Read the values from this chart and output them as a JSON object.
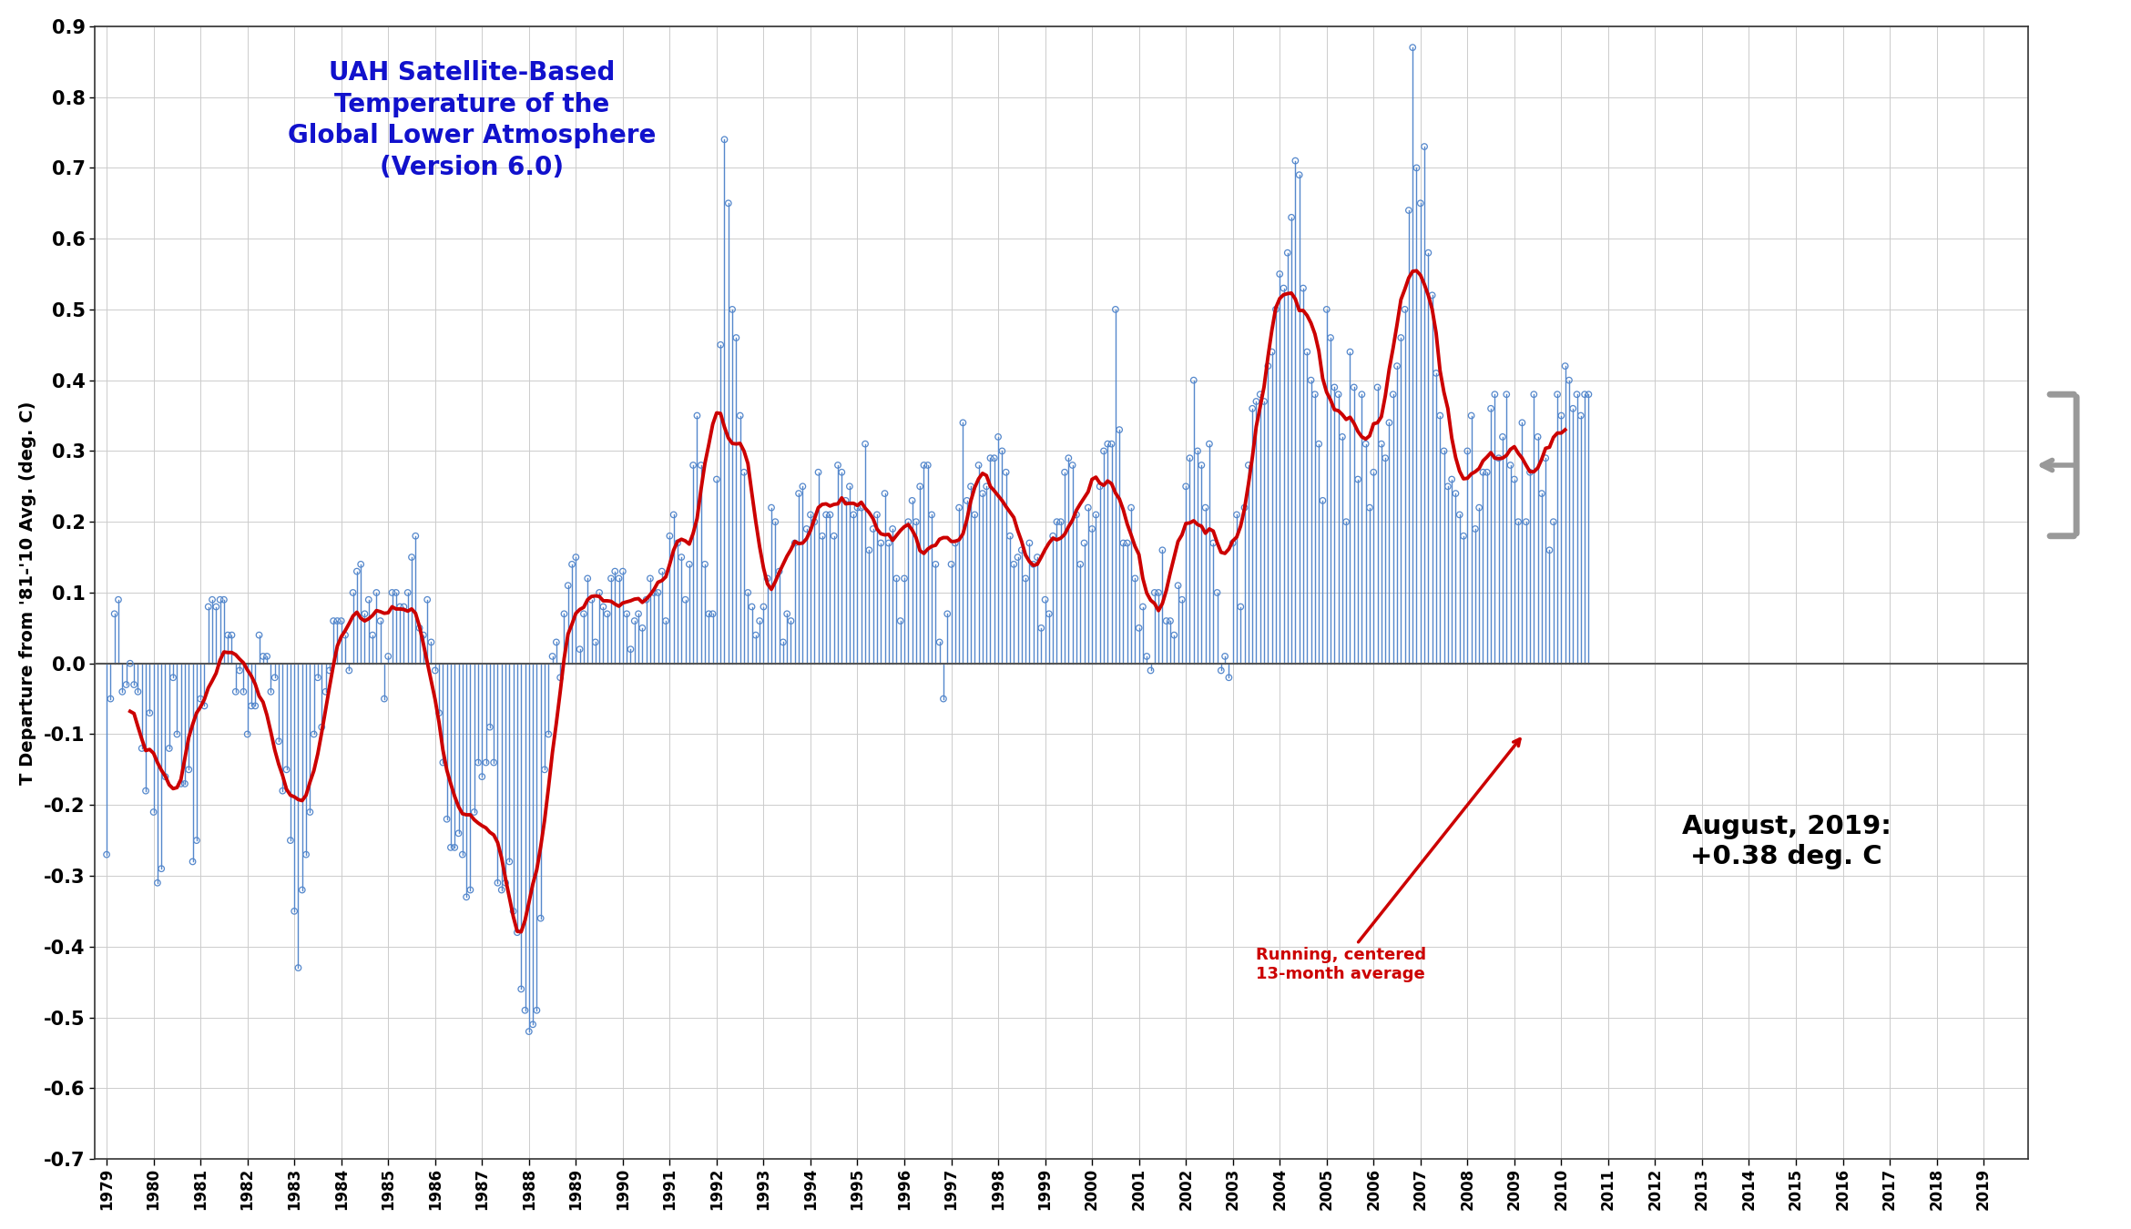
{
  "title_line1": "UAH Satellite-Based",
  "title_line2": "Temperature of the",
  "title_line3": "Global Lower Atmosphere",
  "title_line4": "(Version 6.0)",
  "title_color": "#1111CC",
  "ylabel": "T Departure from '81-'10 Avg. (deg. C)",
  "ylim": [
    -0.7,
    0.9
  ],
  "yticks": [
    -0.7,
    -0.6,
    -0.5,
    -0.4,
    -0.3,
    -0.2,
    -0.1,
    0.0,
    0.1,
    0.2,
    0.3,
    0.4,
    0.5,
    0.6,
    0.7,
    0.8,
    0.9
  ],
  "annotation_text": "Running, centered\n13-month average",
  "annotation_color": "#CC0000",
  "latest_label": "August, 2019:\n+0.38 deg. C",
  "background_color": "#ffffff",
  "grid_color": "#cccccc",
  "monthly_color": "#5588CC",
  "running_color": "#CC0000",
  "monthly_data": [
    -0.27,
    -0.05,
    0.07,
    0.09,
    -0.04,
    -0.03,
    0.0,
    -0.03,
    -0.04,
    -0.12,
    -0.18,
    -0.07,
    -0.21,
    -0.31,
    -0.29,
    -0.16,
    -0.12,
    -0.02,
    -0.1,
    -0.17,
    -0.17,
    -0.15,
    -0.28,
    -0.25,
    -0.05,
    -0.06,
    0.08,
    0.09,
    0.08,
    0.09,
    0.09,
    0.04,
    0.04,
    -0.04,
    -0.01,
    -0.04,
    -0.1,
    -0.06,
    -0.06,
    0.04,
    0.01,
    0.01,
    -0.04,
    -0.02,
    -0.11,
    -0.18,
    -0.15,
    -0.25,
    -0.35,
    -0.43,
    -0.32,
    -0.27,
    -0.21,
    -0.1,
    -0.02,
    -0.09,
    -0.04,
    -0.01,
    0.06,
    0.06,
    0.06,
    0.04,
    -0.01,
    0.1,
    0.13,
    0.14,
    0.07,
    0.09,
    0.04,
    0.1,
    0.06,
    -0.05,
    0.01,
    0.1,
    0.1,
    0.08,
    0.08,
    0.1,
    0.15,
    0.18,
    0.05,
    0.04,
    0.09,
    0.03,
    -0.01,
    -0.07,
    -0.14,
    -0.22,
    -0.26,
    -0.26,
    -0.24,
    -0.27,
    -0.33,
    -0.32,
    -0.21,
    -0.14,
    -0.16,
    -0.14,
    -0.09,
    -0.14,
    -0.31,
    -0.32,
    -0.31,
    -0.28,
    -0.35,
    -0.38,
    -0.46,
    -0.49,
    -0.52,
    -0.51,
    -0.49,
    -0.36,
    -0.15,
    -0.1,
    0.01,
    0.03,
    -0.02,
    0.07,
    0.11,
    0.14,
    0.15,
    0.02,
    0.07,
    0.12,
    0.09,
    0.03,
    0.1,
    0.08,
    0.07,
    0.12,
    0.13,
    0.12,
    0.13,
    0.07,
    0.02,
    0.06,
    0.07,
    0.05,
    0.09,
    0.12,
    0.1,
    0.1,
    0.13,
    0.06,
    0.18,
    0.21,
    0.17,
    0.15,
    0.09,
    0.14,
    0.28,
    0.35,
    0.28,
    0.14,
    0.07,
    0.07,
    0.26,
    0.45,
    0.74,
    0.65,
    0.5,
    0.46,
    0.35,
    0.27,
    0.1,
    0.08,
    0.04,
    0.06,
    0.08,
    0.12,
    0.22,
    0.2,
    0.13,
    0.03,
    0.07,
    0.06,
    0.17,
    0.24,
    0.25,
    0.19,
    0.21,
    0.2,
    0.27,
    0.18,
    0.21,
    0.21,
    0.18,
    0.28,
    0.27,
    0.23,
    0.25,
    0.21,
    0.22,
    0.22,
    0.31,
    0.16,
    0.19,
    0.21,
    0.17,
    0.24,
    0.17,
    0.19,
    0.12,
    0.06,
    0.12,
    0.2,
    0.23,
    0.2,
    0.25,
    0.28,
    0.28,
    0.21,
    0.14,
    0.03,
    -0.05,
    0.07,
    0.14,
    0.17,
    0.22,
    0.34,
    0.23,
    0.25,
    0.21,
    0.28,
    0.24,
    0.25,
    0.29,
    0.29,
    0.32,
    0.3,
    0.27,
    0.18,
    0.14,
    0.15,
    0.16,
    0.12,
    0.17,
    0.14,
    0.15,
    0.05,
    0.09,
    0.07,
    0.18,
    0.2,
    0.2,
    0.27,
    0.29,
    0.28,
    0.21,
    0.14,
    0.17,
    0.22,
    0.19,
    0.21,
    0.25,
    0.3,
    0.31,
    0.31,
    0.5,
    0.33,
    0.17,
    0.17,
    0.22,
    0.12,
    0.05,
    0.08,
    0.01,
    -0.01,
    0.1,
    0.1,
    0.16,
    0.06,
    0.06,
    0.04,
    0.11,
    0.09,
    0.25,
    0.29,
    0.4,
    0.3,
    0.28,
    0.22,
    0.31,
    0.17,
    0.1,
    -0.01,
    0.01,
    -0.02,
    0.17,
    0.21,
    0.08,
    0.22,
    0.28,
    0.36,
    0.37,
    0.38,
    0.37,
    0.42,
    0.44,
    0.5,
    0.55,
    0.53,
    0.58,
    0.63,
    0.71,
    0.69,
    0.53,
    0.44,
    0.4,
    0.38,
    0.31,
    0.23,
    0.5,
    0.46,
    0.39,
    0.38,
    0.32,
    0.2,
    0.44,
    0.39,
    0.26,
    0.38,
    0.31,
    0.22,
    0.27,
    0.39,
    0.31,
    0.29,
    0.34,
    0.38,
    0.42,
    0.46,
    0.5,
    0.64,
    0.87,
    0.7,
    0.65,
    0.73,
    0.58,
    0.52,
    0.41,
    0.35,
    0.3,
    0.25,
    0.26,
    0.24,
    0.21,
    0.18,
    0.3,
    0.35,
    0.19,
    0.22,
    0.27,
    0.27,
    0.36,
    0.38,
    0.29,
    0.32,
    0.38,
    0.28,
    0.26,
    0.2,
    0.34,
    0.2,
    0.27,
    0.38,
    0.32,
    0.24,
    0.29,
    0.16,
    0.2,
    0.38,
    0.35,
    0.42,
    0.4,
    0.36,
    0.38,
    0.35,
    0.38,
    0.38
  ],
  "start_year": 1979,
  "start_month": 1
}
